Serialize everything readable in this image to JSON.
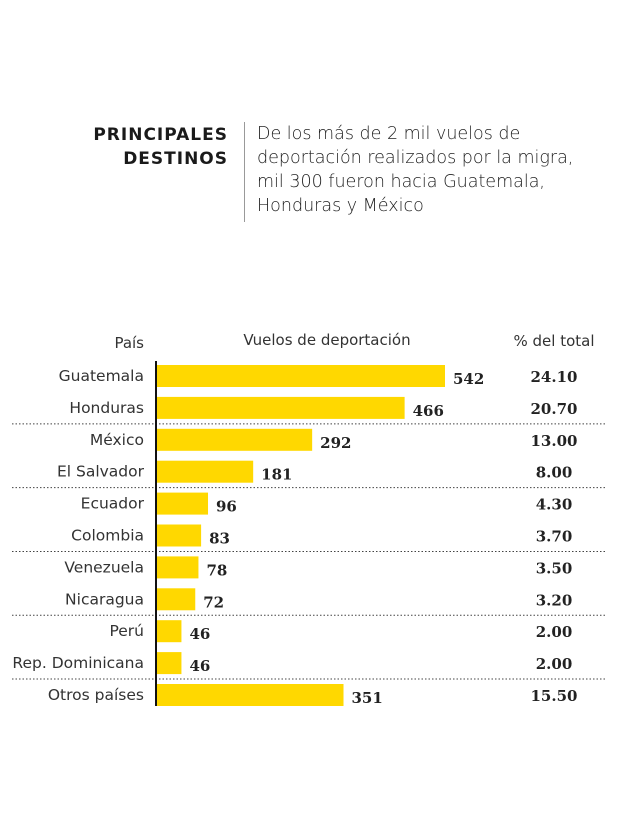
{
  "header": {
    "title_line1": "PRINCIPALES",
    "title_line2": "DESTINOS",
    "subtitle": "De los más de 2 mil vuelos de deportación realizados por la migra, mil 300 fueron hacia Guatemala, Honduras y México"
  },
  "chart_data": {
    "type": "bar",
    "orientation": "horizontal",
    "bar_color": "#FFD800",
    "column_headers": {
      "category": "País",
      "values": "Vuelos de deportación",
      "percent": "% del total"
    },
    "categories": [
      "Guatemala",
      "Honduras",
      "México",
      "El Salvador",
      "Ecuador",
      "Colombia",
      "Venezuela",
      "Nicaragua",
      "Perú",
      "Rep. Dominicana",
      "Otros países"
    ],
    "values": [
      542,
      466,
      292,
      181,
      96,
      83,
      78,
      72,
      46,
      46,
      351
    ],
    "percent_labels": [
      "24.10",
      "20.70",
      "13.00",
      "8.00",
      "4.30",
      "3.70",
      "3.50",
      "3.20",
      "2.00",
      "2.00",
      "15.50"
    ],
    "grid": false
  }
}
